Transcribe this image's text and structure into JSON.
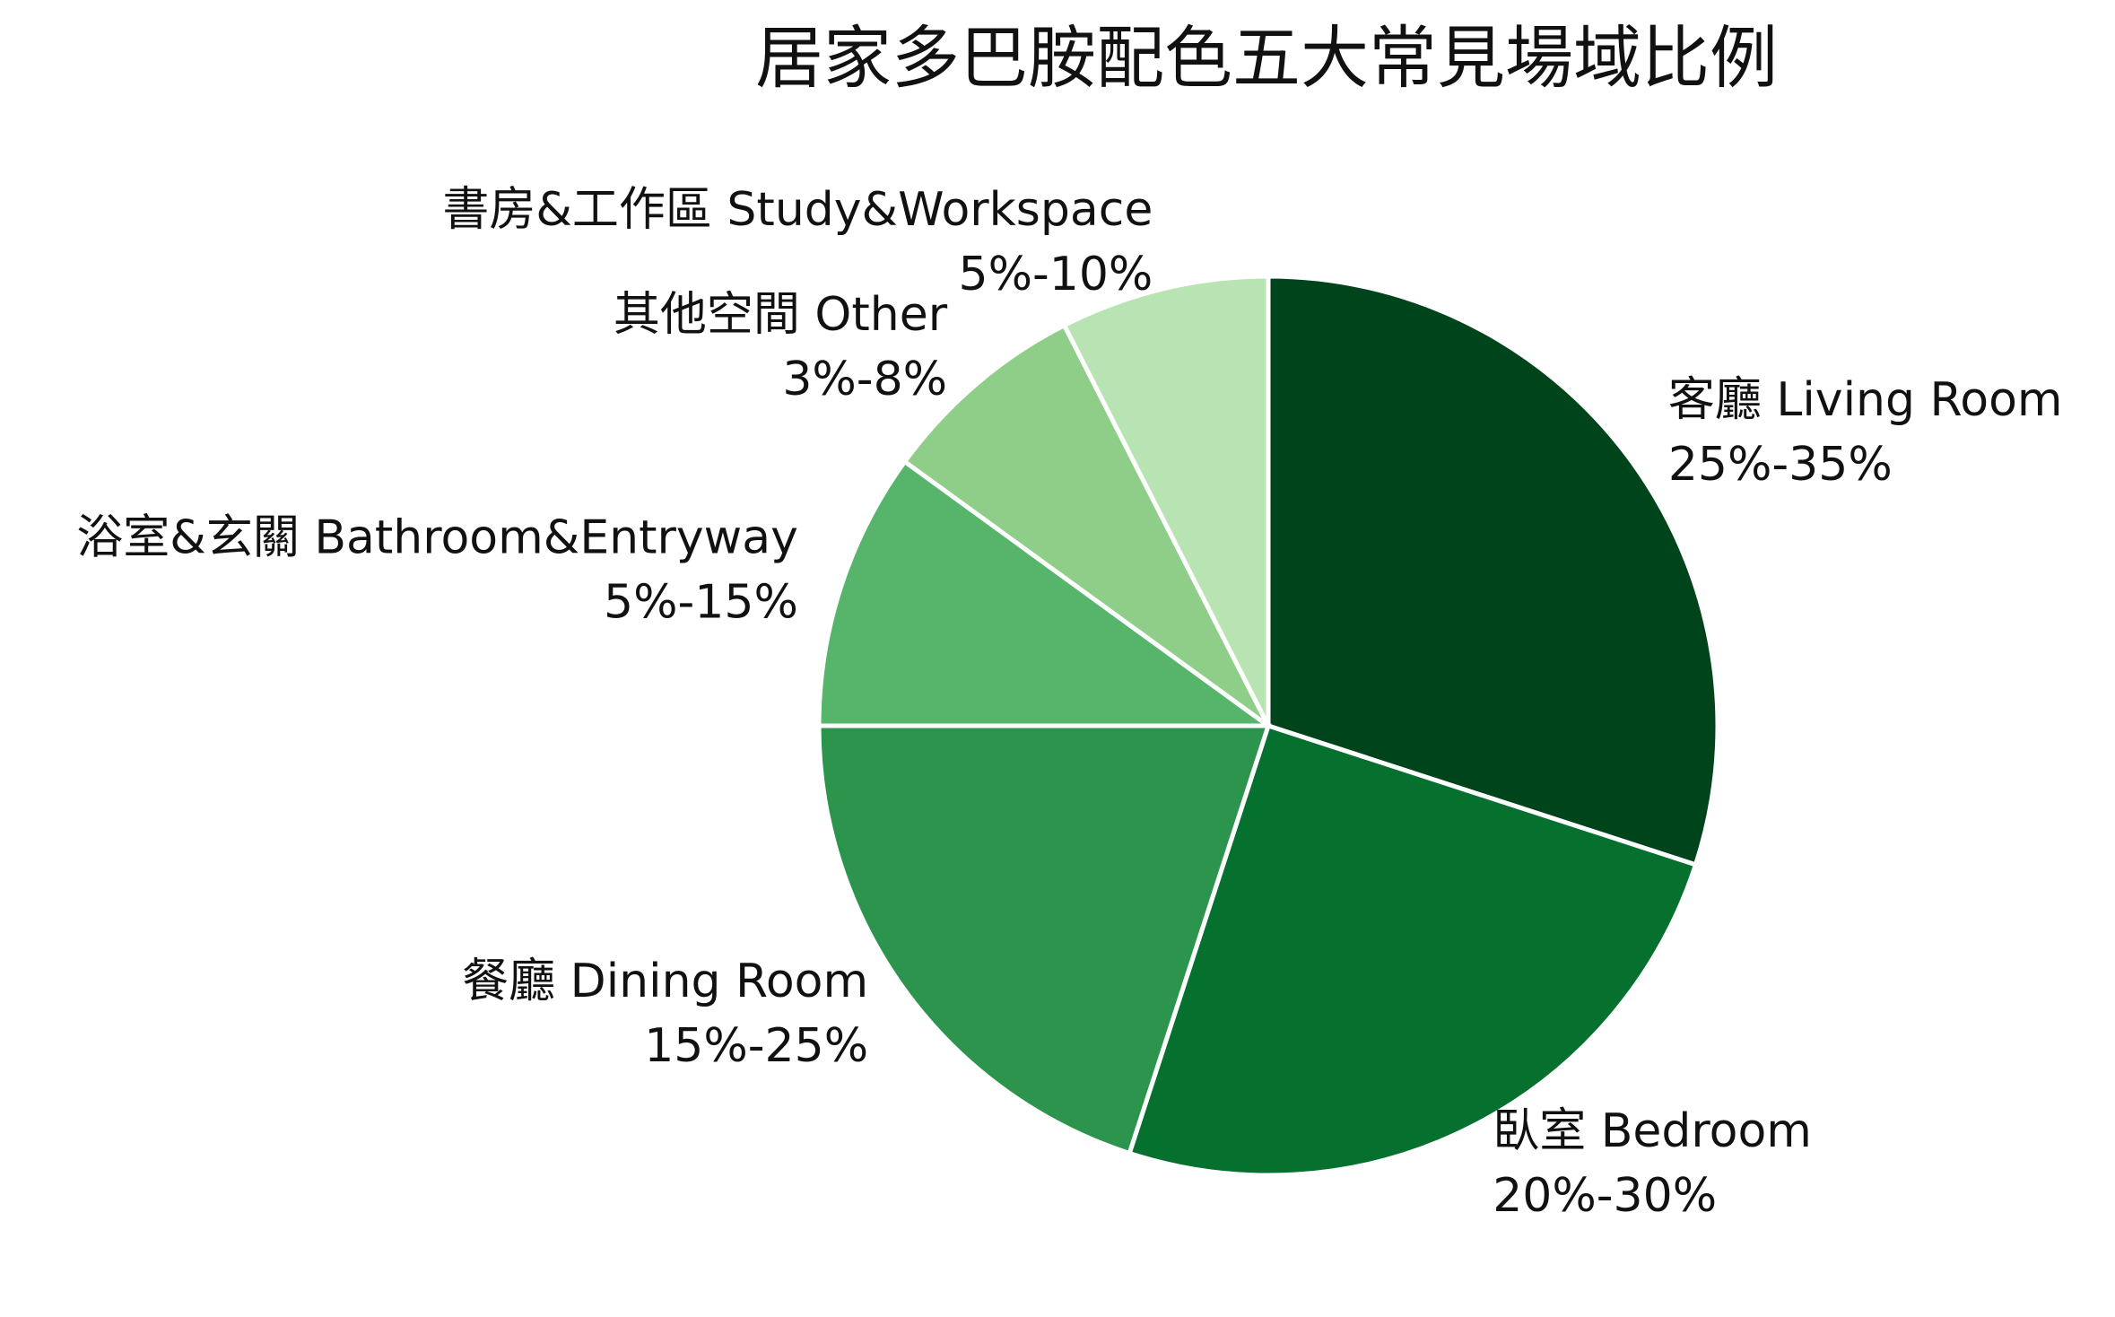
{
  "chart_data": {
    "type": "pie",
    "title": "居家多巴胺配色五大常見場域比例",
    "categories": [
      "客廳 Living Room",
      "臥室 Bedroom",
      "餐廳 Dining Room",
      "浴室&玄關 Bathroom&Entryway",
      "其他空間 Other",
      "書房&工作區 Study&Workspace"
    ],
    "ranges": [
      "25%-35%",
      "20%-30%",
      "15%-25%",
      "5%-15%",
      "3%-8%",
      "5%-10%"
    ],
    "values": [
      30,
      25,
      20,
      10,
      7.5,
      7.5
    ],
    "colors": [
      "#00441b",
      "#06702f",
      "#2c944c",
      "#56b56b",
      "#8ece88",
      "#b8e3b2"
    ]
  }
}
